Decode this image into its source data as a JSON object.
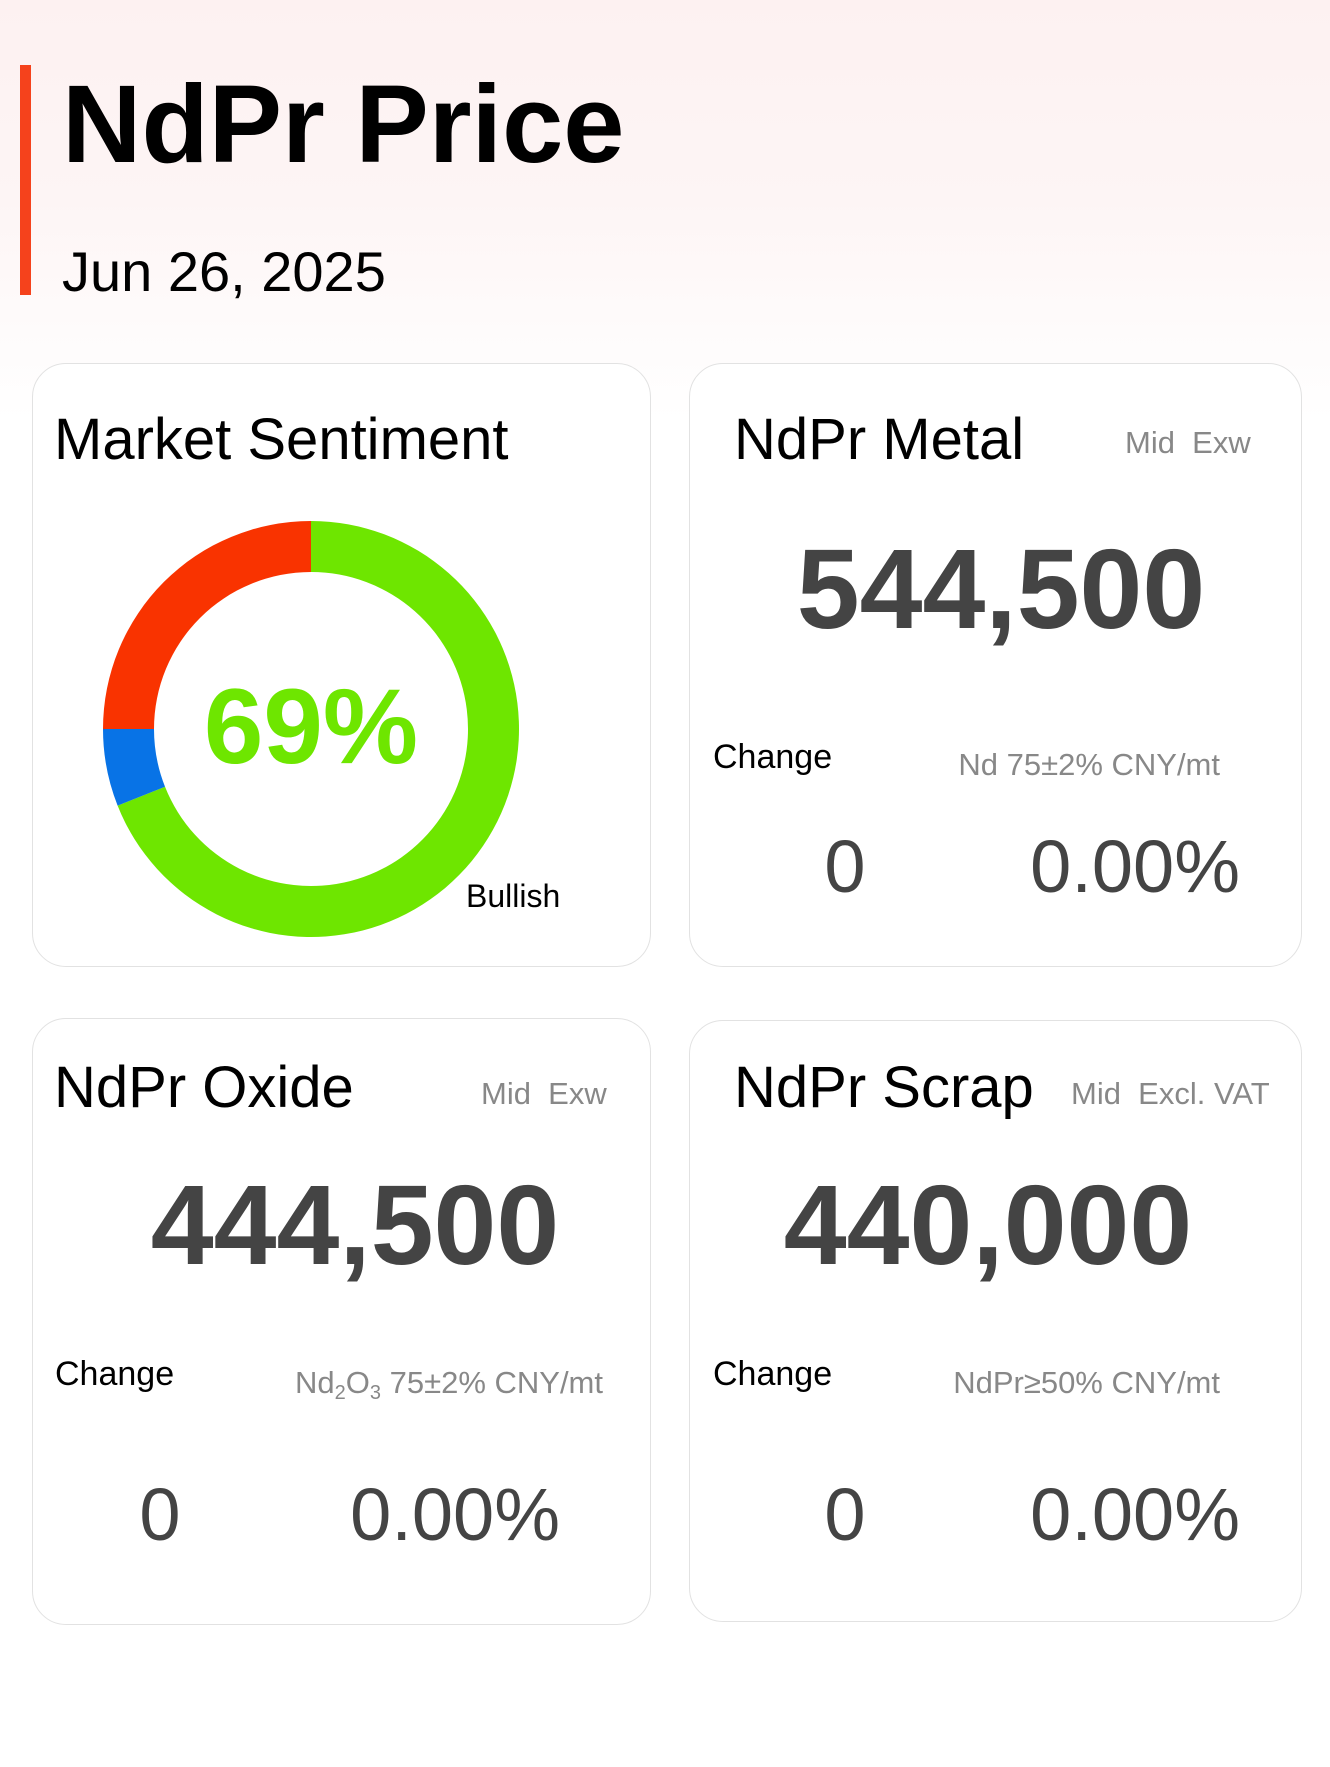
{
  "header": {
    "title": "NdPr Price",
    "date": "Jun 26, 2025",
    "accent_color": "#f5421c"
  },
  "sentiment": {
    "title": "Market Sentiment",
    "label": "Bullish"
  },
  "chart_data": {
    "type": "pie",
    "title": "Market Sentiment",
    "center_label": "69%",
    "annotation": "Bullish",
    "slices": [
      {
        "label": "Bullish",
        "value": 69,
        "color": "#6ee600"
      },
      {
        "label": "",
        "value": 6,
        "color": "#0873e6"
      },
      {
        "label": "",
        "value": 25,
        "color": "#f93300"
      }
    ]
  },
  "cards": [
    {
      "title": "NdPr Metal",
      "tag": "Mid  Exw",
      "price": "544,500",
      "change_label": "Change",
      "spec": "Nd 75±2% CNY/mt",
      "change": "0",
      "change_pct": "0.00%"
    },
    {
      "title": "NdPr Oxide",
      "tag": "Mid  Exw",
      "price": "444,500",
      "change_label": "Change",
      "spec_parts": [
        "Nd",
        "2",
        "O",
        "3",
        " 75±2% CNY/mt"
      ],
      "change": "0",
      "change_pct": "0.00%"
    },
    {
      "title": "NdPr Scrap",
      "tag": "Mid  Excl. VAT",
      "price": "440,000",
      "change_label": "Change",
      "spec": "NdPr≥50% CNY/mt",
      "change": "0",
      "change_pct": "0.00%"
    }
  ]
}
